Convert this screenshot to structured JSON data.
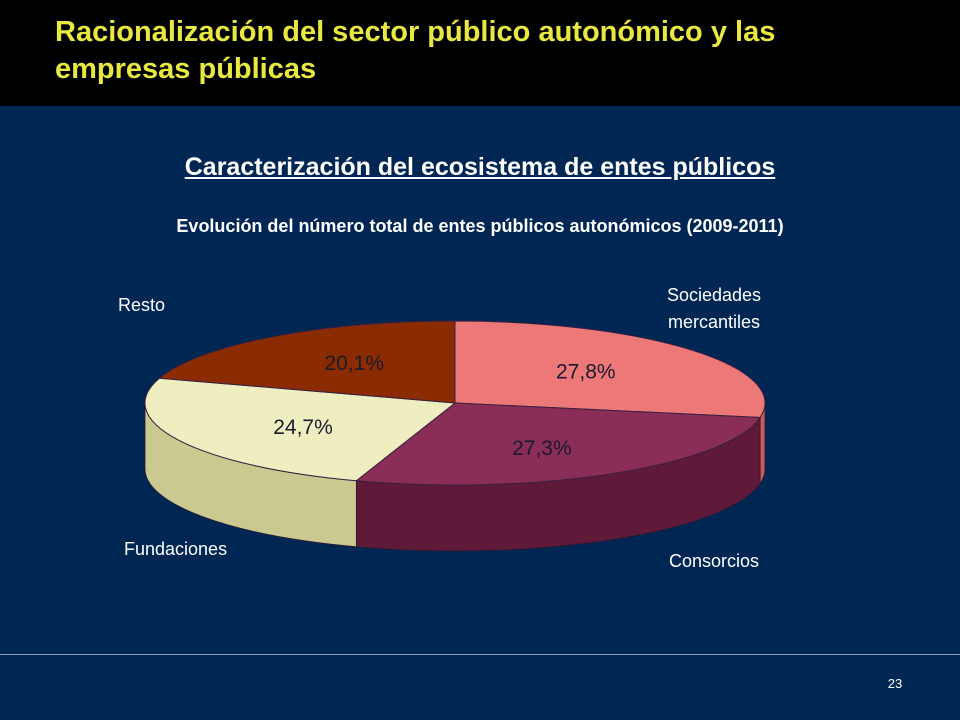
{
  "slide": {
    "title": "Racionalización del sector público autonómico y las empresas públicas",
    "section_title": "Caracterización del ecosistema de entes públicos",
    "page_number": "23"
  },
  "colors": {
    "background": "#002654",
    "header": "#000000",
    "title": "#E8E840"
  },
  "chart_data": {
    "type": "pie",
    "style": "3d",
    "title": "Evolución del número total de entes públicos autonómicos (2009-2011)",
    "slices": [
      {
        "category": "Sociedades mercantiles",
        "value": 27.8,
        "label": "27,8%",
        "color": "#EC7878",
        "side_color": "#C85A5A"
      },
      {
        "category": "Consorcios",
        "value": 27.3,
        "label": "27,3%",
        "color": "#8A2E58",
        "side_color": "#5E1A38"
      },
      {
        "category": "Fundaciones",
        "value": 24.7,
        "label": "24,7%",
        "color": "#EEEEC0",
        "side_color": "#C9C990"
      },
      {
        "category": "Resto",
        "value": 20.1,
        "label": "20,1%",
        "color": "#8B2C00",
        "side_color": "#5A1C00"
      }
    ]
  }
}
